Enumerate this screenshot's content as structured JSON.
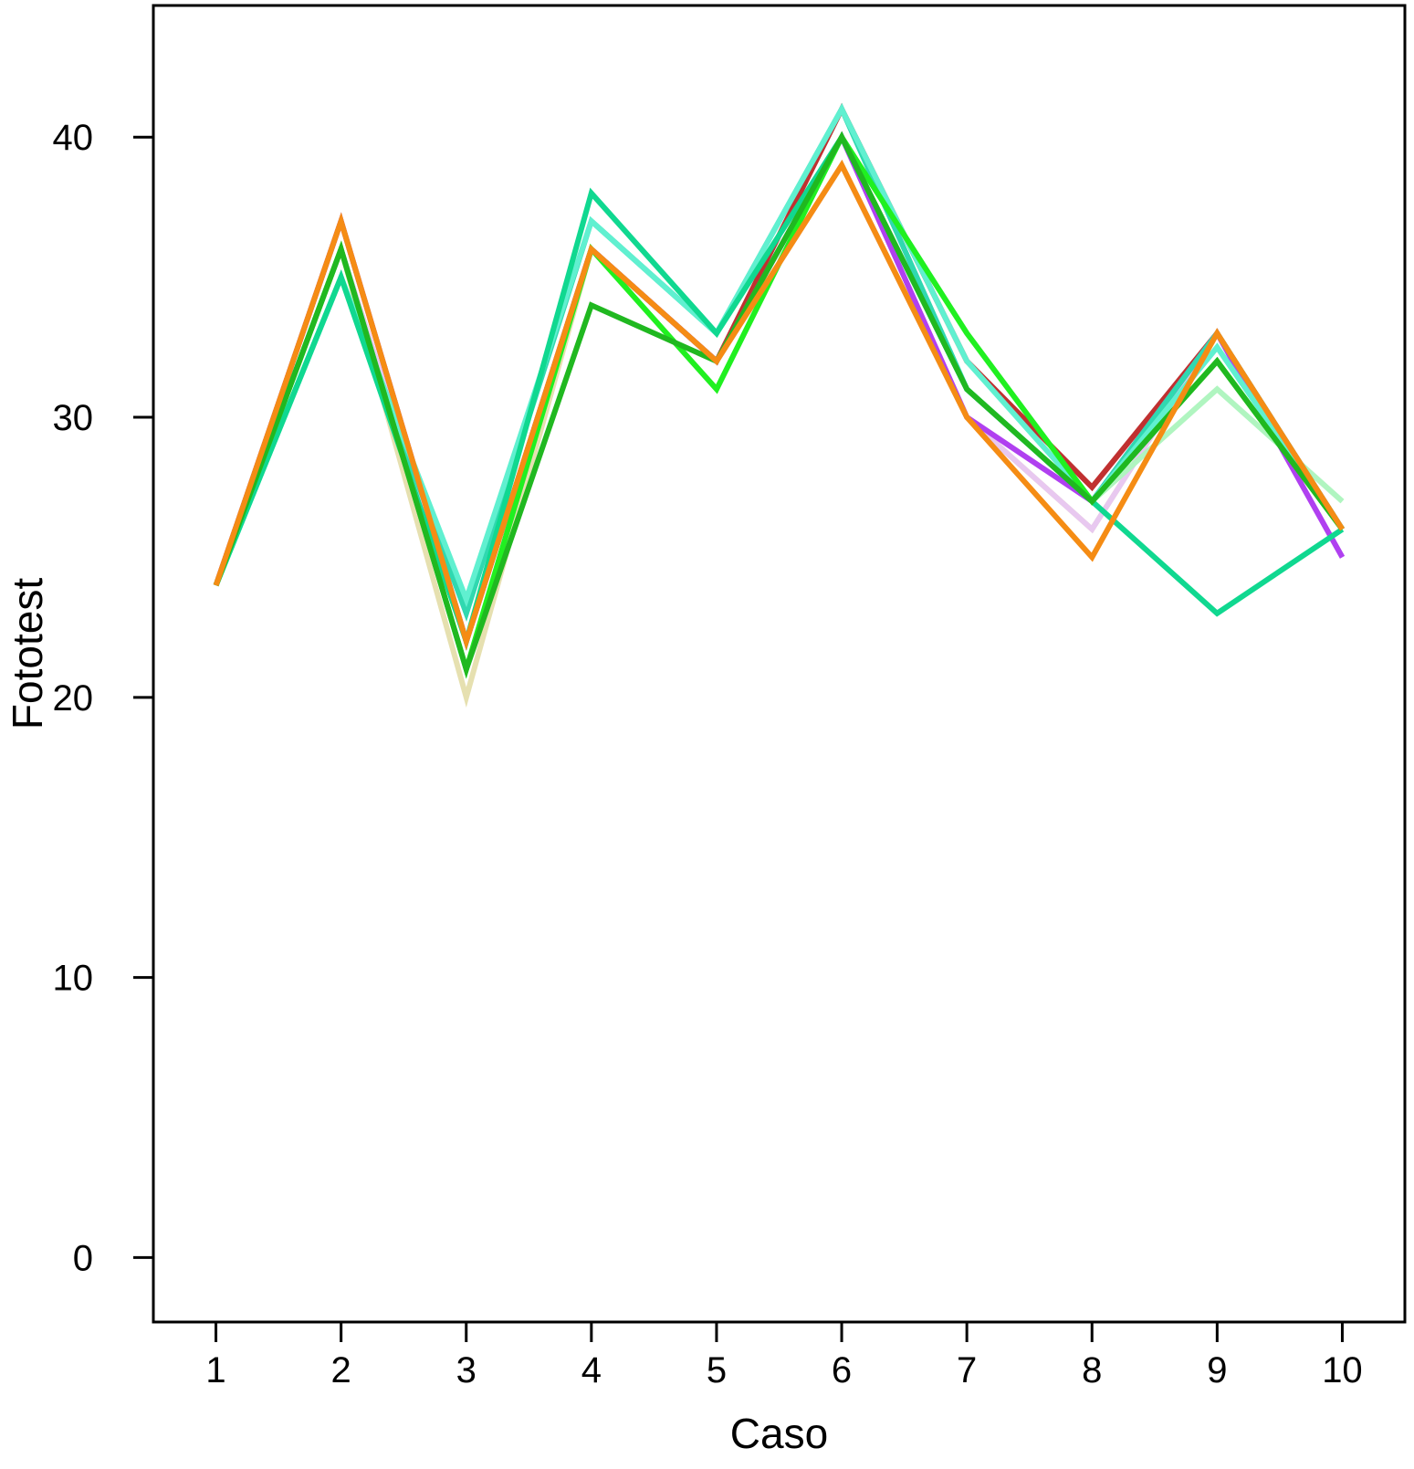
{
  "chart_data": {
    "type": "line",
    "xlabel": "Caso",
    "ylabel": "Fototest",
    "x": [
      1,
      2,
      3,
      4,
      5,
      6,
      7,
      8,
      9,
      10
    ],
    "x_tick_labels": [
      "1",
      "2",
      "3",
      "4",
      "5",
      "6",
      "7",
      "8",
      "9",
      "10"
    ],
    "y_ticks": [
      0,
      10,
      20,
      30,
      40
    ],
    "y_tick_labels": [
      "0",
      "10",
      "20",
      "30",
      "40"
    ],
    "ylim": [
      -2.3,
      44.7
    ],
    "xlim": [
      0.5,
      10.5
    ],
    "grid": false,
    "legend": "none",
    "series": [
      {
        "color": "#e6e0b0",
        "values": [
          24,
          36,
          20,
          36,
          32,
          39,
          30,
          26,
          33,
          26
        ]
      },
      {
        "color": "#e8c8f0",
        "values": [
          24,
          36,
          22,
          36,
          32,
          39,
          30,
          26,
          33,
          26
        ]
      },
      {
        "color": "#b0f5c0",
        "values": [
          24,
          36,
          21,
          36,
          32,
          40,
          31,
          27,
          31,
          27
        ]
      },
      {
        "color": "#c03030",
        "values": [
          24,
          37,
          22,
          36,
          32,
          41,
          32,
          27.5,
          33,
          26
        ]
      },
      {
        "color": "#b040f0",
        "values": [
          24,
          37,
          22,
          36,
          32,
          40,
          30,
          27,
          33,
          25
        ]
      },
      {
        "color": "#30d8b0",
        "values": [
          24,
          35,
          23,
          37,
          33,
          41,
          31,
          27,
          33,
          26
        ]
      },
      {
        "color": "#60f0d0",
        "values": [
          24,
          35,
          23.5,
          37,
          33,
          41,
          32,
          27,
          32.5,
          26
        ]
      },
      {
        "color": "#10d890",
        "values": [
          24,
          35,
          22,
          38,
          33,
          40,
          31,
          27,
          23,
          26
        ]
      },
      {
        "color": "#20f020",
        "values": [
          24,
          36,
          21,
          36,
          31,
          40,
          33,
          27,
          32,
          26
        ]
      },
      {
        "color": "#20b820",
        "values": [
          24,
          36,
          21,
          34,
          32,
          40,
          31,
          27,
          32,
          26
        ]
      },
      {
        "color": "#f58c14",
        "values": [
          24,
          37,
          22,
          36,
          32,
          39,
          30,
          25,
          33,
          26
        ]
      }
    ]
  }
}
